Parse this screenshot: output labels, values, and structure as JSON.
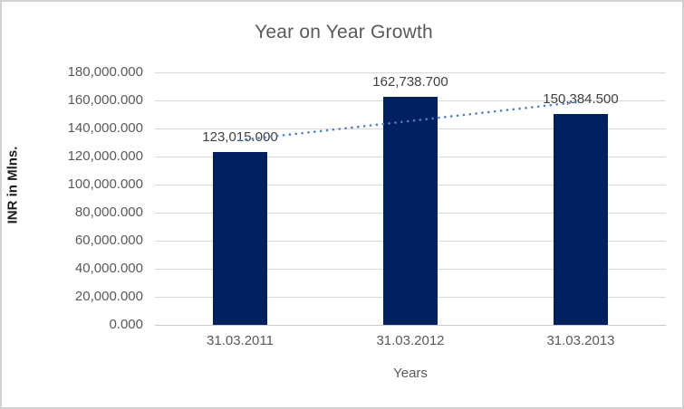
{
  "chart_data": {
    "type": "bar",
    "title": "Year on Year Growth",
    "xlabel": "Years",
    "ylabel": "INR in Mlns.",
    "categories": [
      "31.03.2011",
      "31.03.2012",
      "31.03.2013"
    ],
    "values": [
      123015.0,
      162738.7,
      150384.5
    ],
    "data_labels": [
      "123,015.000",
      "162,738.700",
      "150,384.500"
    ],
    "ylim": [
      0,
      180000
    ],
    "ytick_step": 20000,
    "ytick_labels": [
      "0.000",
      "20,000.000",
      "40,000.000",
      "60,000.000",
      "80,000.000",
      "100,000.000",
      "120,000.000",
      "140,000.000",
      "160,000.000",
      "180,000.000"
    ],
    "grid": "horizontal",
    "legend": "none",
    "trendline": {
      "type": "linear",
      "style": "dotted"
    },
    "colors": {
      "bar": "#002060",
      "trendline": "#4f81bd",
      "gridline": "#d9d9d9",
      "axis_line": "#c9c9c9",
      "title_text": "#595959",
      "axis_text": "#595959",
      "data_label_text": "#404040",
      "frame": "#d2d2d2"
    }
  }
}
